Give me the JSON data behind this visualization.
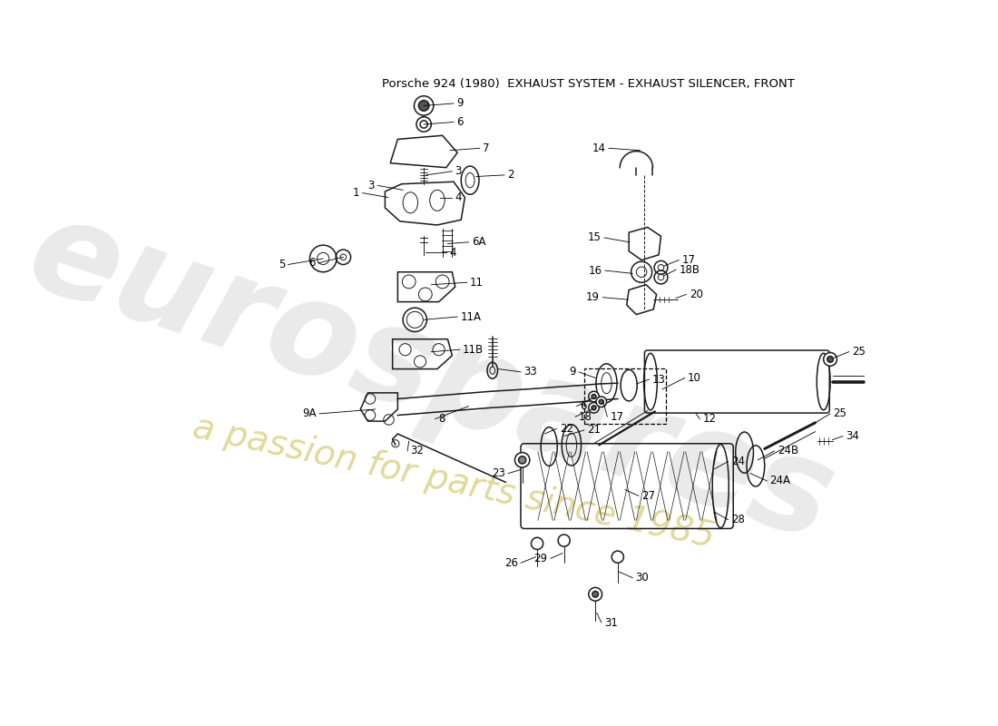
{
  "title": "Porsche 924 (1980)  EXHAUST SYSTEM - EXHAUST SILENCER, FRONT",
  "bg_color": "#ffffff",
  "line_color": "#1a1a1a",
  "watermark_text1": "eurospares",
  "watermark_text2": "a passion for parts since 1985",
  "watermark_color1": "#d0d0d0",
  "watermark_color2": "#d8d080",
  "fig_w": 11.0,
  "fig_h": 8.0,
  "dpi": 100,
  "xmin": 0,
  "xmax": 1100,
  "ymin": 0,
  "ymax": 800,
  "label_fontsize": 8.5,
  "title_fontsize": 9.5
}
